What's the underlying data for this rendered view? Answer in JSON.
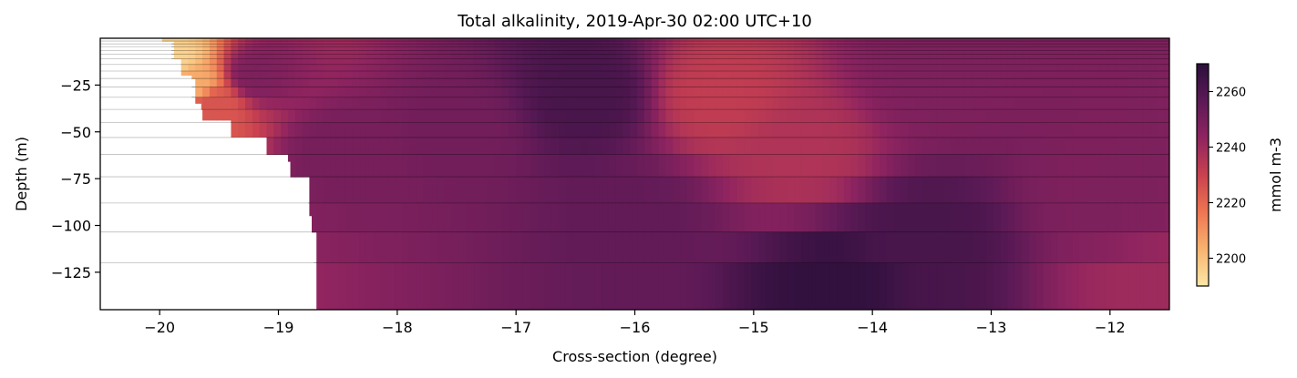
{
  "chart_data": {
    "type": "heatmap",
    "title": "Total alkalinity, 2019-Apr-30 02:00 UTC+10",
    "xlabel": "Cross-section (degree)",
    "ylabel": "Depth (m)",
    "xlim": [
      -20.5,
      -11.5
    ],
    "ylim": [
      -145,
      0
    ],
    "x_ticks": [
      -20,
      -19,
      -18,
      -17,
      -16,
      -15,
      -14,
      -13,
      -12
    ],
    "x_tick_labels": [
      "−20",
      "−19",
      "−18",
      "−17",
      "−16",
      "−15",
      "−14",
      "−13",
      "−12"
    ],
    "y_ticks": [
      -25,
      -50,
      -75,
      -100,
      -125
    ],
    "y_tick_labels": [
      "−25",
      "−50",
      "−75",
      "−100",
      "−125"
    ],
    "colorbar": {
      "label": "mmol m-3",
      "range": [
        2190,
        2270
      ],
      "ticks": [
        2200,
        2220,
        2240,
        2260
      ],
      "tick_labels": [
        "2200",
        "2220",
        "2240",
        "2260"
      ],
      "colormap": "magma_r",
      "stops": [
        "#fde7a5",
        "#f8b36f",
        "#ee7551",
        "#c9414f",
        "#8f2460",
        "#5c1a56",
        "#2b0f3b"
      ]
    },
    "layer_depths": [
      0,
      -1.5,
      -3,
      -4.5,
      -6.5,
      -8.5,
      -11,
      -14,
      -17.5,
      -21.5,
      -26,
      -31.5,
      -38,
      -45,
      -53,
      -62,
      -74,
      -88,
      -103.5,
      -120,
      -145
    ],
    "bathymetry": [
      {
        "x": -19.98,
        "depth": -2
      },
      {
        "x": -19.9,
        "depth": -12
      },
      {
        "x": -19.82,
        "depth": -20
      },
      {
        "x": -19.73,
        "depth": -35
      },
      {
        "x": -19.65,
        "depth": -44
      },
      {
        "x": -19.4,
        "depth": -53
      },
      {
        "x": -19.28,
        "depth": -53
      },
      {
        "x": -19.1,
        "depth": -66
      },
      {
        "x": -19.0,
        "depth": -66
      },
      {
        "x": -18.9,
        "depth": -80
      },
      {
        "x": -18.75,
        "depth": -95
      },
      {
        "x": -18.72,
        "depth": -110
      },
      {
        "x": -18.7,
        "depth": -145
      }
    ],
    "field_samples": [
      {
        "x": -19.9,
        "depth": -10,
        "value": 2195
      },
      {
        "x": -19.7,
        "depth": -25,
        "value": 2205
      },
      {
        "x": -19.55,
        "depth": -35,
        "value": 2225
      },
      {
        "x": -19.2,
        "depth": -20,
        "value": 2248
      },
      {
        "x": -18.5,
        "depth": -60,
        "value": 2250
      },
      {
        "x": -17.5,
        "depth": -50,
        "value": 2251
      },
      {
        "x": -16.4,
        "depth": -30,
        "value": 2262
      },
      {
        "x": -16.0,
        "depth": -100,
        "value": 2255
      },
      {
        "x": -15.3,
        "depth": -30,
        "value": 2232
      },
      {
        "x": -14.6,
        "depth": -60,
        "value": 2236
      },
      {
        "x": -14.3,
        "depth": -135,
        "value": 2268
      },
      {
        "x": -13.6,
        "depth": -110,
        "value": 2262
      },
      {
        "x": -13.5,
        "depth": -20,
        "value": 2248
      },
      {
        "x": -12.0,
        "depth": -80,
        "value": 2248
      },
      {
        "x": -11.6,
        "depth": -140,
        "value": 2240
      }
    ]
  }
}
